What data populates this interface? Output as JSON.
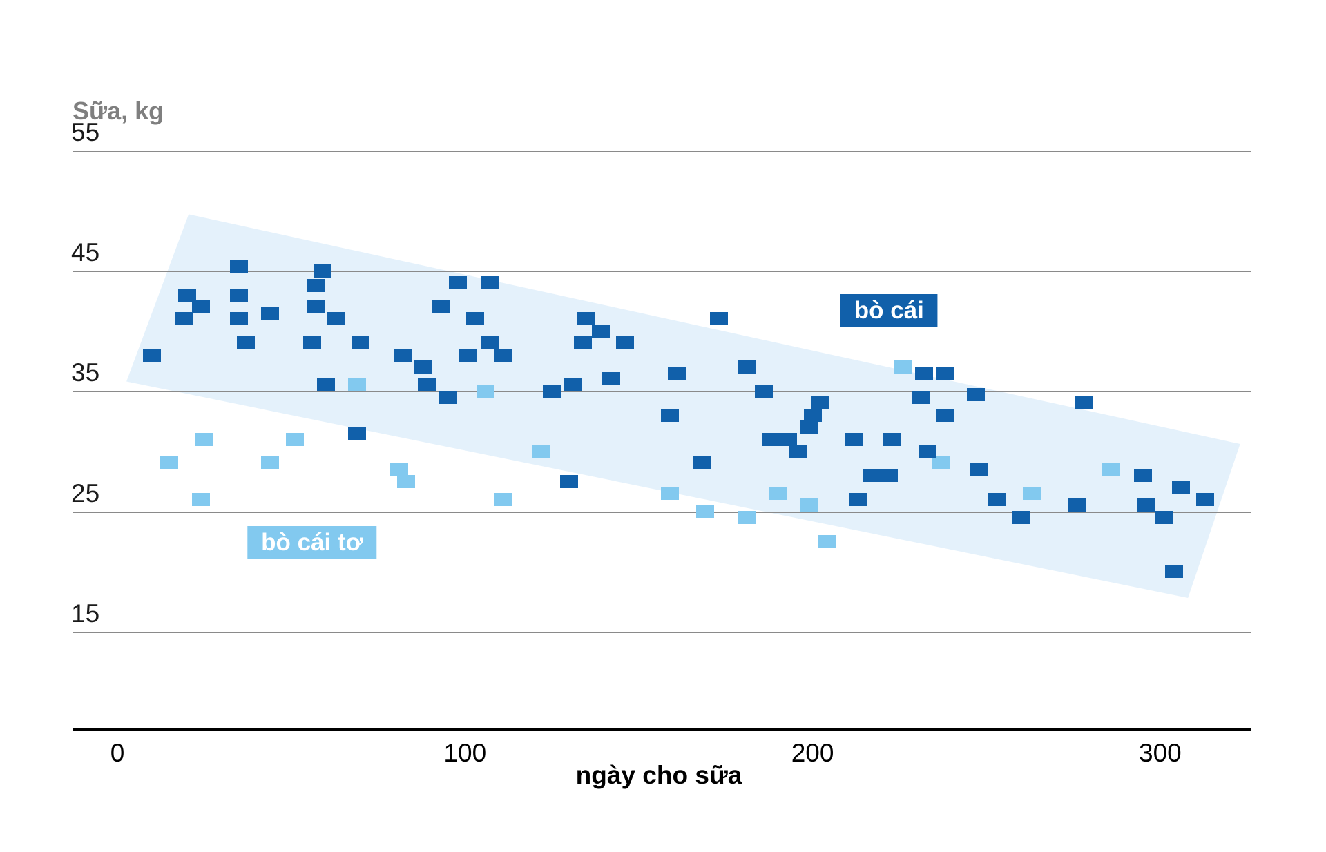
{
  "page": {
    "background": "#ffffff"
  },
  "chart_data": {
    "type": "scatter",
    "title": "",
    "ylabel": "Sữa, kg",
    "xlabel": "ngày cho sữa",
    "y_ticks": [
      55,
      45,
      35,
      25,
      15
    ],
    "x_ticks": [
      0,
      100,
      200,
      300
    ],
    "xlim": [
      -13,
      327
    ],
    "ylim": [
      13,
      58
    ],
    "grid": "horizontal-only",
    "legend_style": "inline-badges",
    "gridline_color": "#8a8a8a",
    "axis_color": "#000000",
    "ylabel_color": "#7f7f7f",
    "trend_band": {
      "color": "#E4F1FB",
      "corners_day_kg": [
        [
          20.5,
          49.7
        ],
        [
          323,
          30.6
        ],
        [
          308,
          17.8
        ],
        [
          2.6,
          35.8
        ]
      ]
    },
    "series": [
      {
        "name": "bò cái tơ",
        "color": "#82C9EF",
        "marker": "square",
        "points": [
          [
            15,
            29
          ],
          [
            24,
            26
          ],
          [
            25,
            31
          ],
          [
            44,
            29
          ],
          [
            51,
            31
          ],
          [
            69,
            35.5
          ],
          [
            81,
            28.5
          ],
          [
            83,
            27.5
          ],
          [
            106,
            35
          ],
          [
            111,
            26
          ],
          [
            122,
            30
          ],
          [
            159,
            26.5
          ],
          [
            169,
            25
          ],
          [
            181,
            24.5
          ],
          [
            190,
            26.5
          ],
          [
            199,
            25.5
          ],
          [
            204,
            22.5
          ],
          [
            226,
            37
          ],
          [
            237,
            29
          ],
          [
            263,
            26.5
          ],
          [
            286,
            28.5
          ]
        ]
      },
      {
        "name": "bò cái",
        "color": "#1160AA",
        "marker": "square",
        "points": [
          [
            10,
            38
          ],
          [
            19,
            41
          ],
          [
            20,
            43
          ],
          [
            24,
            42
          ],
          [
            35,
            45.3
          ],
          [
            35,
            43
          ],
          [
            35,
            41
          ],
          [
            37,
            39
          ],
          [
            44,
            41.5
          ],
          [
            56,
            39
          ],
          [
            57,
            43.8
          ],
          [
            57,
            42
          ],
          [
            59,
            45
          ],
          [
            60,
            35.5
          ],
          [
            63,
            41
          ],
          [
            69,
            31.5
          ],
          [
            70,
            39
          ],
          [
            82,
            38
          ],
          [
            88,
            37
          ],
          [
            89,
            35.5
          ],
          [
            93,
            42
          ],
          [
            95,
            34.5
          ],
          [
            98,
            44
          ],
          [
            101,
            38
          ],
          [
            103,
            41
          ],
          [
            107,
            44
          ],
          [
            107,
            39
          ],
          [
            111,
            38
          ],
          [
            125,
            35
          ],
          [
            130,
            27.5
          ],
          [
            131,
            35.5
          ],
          [
            134,
            39
          ],
          [
            135,
            41
          ],
          [
            139,
            40
          ],
          [
            142,
            36
          ],
          [
            146,
            39
          ],
          [
            159,
            33
          ],
          [
            161,
            36.5
          ],
          [
            168,
            29
          ],
          [
            173,
            41
          ],
          [
            181,
            37
          ],
          [
            186,
            35
          ],
          [
            188,
            31
          ],
          [
            193,
            31
          ],
          [
            196,
            30
          ],
          [
            199,
            32
          ],
          [
            200,
            33
          ],
          [
            202,
            34
          ],
          [
            212,
            31
          ],
          [
            213,
            26
          ],
          [
            217,
            28
          ],
          [
            222,
            28
          ],
          [
            223,
            31
          ],
          [
            231,
            34.5
          ],
          [
            232,
            36.5
          ],
          [
            233,
            30
          ],
          [
            238,
            36.5
          ],
          [
            238,
            33
          ],
          [
            247,
            34.7
          ],
          [
            248,
            28.5
          ],
          [
            253,
            26
          ],
          [
            260,
            24.5
          ],
          [
            276,
            25.5
          ],
          [
            278,
            34
          ],
          [
            295,
            28
          ],
          [
            296,
            25.5
          ],
          [
            301,
            24.5
          ],
          [
            304,
            20
          ],
          [
            306,
            27
          ],
          [
            313,
            26
          ]
        ]
      }
    ],
    "labels": [
      {
        "text": "bò cái",
        "bg": "#1160AA",
        "fg": "#ffffff",
        "anchor_day_kg": [
          222,
          41.7
        ]
      },
      {
        "text": "bò cái tơ",
        "bg": "#82C9EF",
        "fg": "#ffffff",
        "anchor_day_kg": [
          56,
          22.4
        ]
      }
    ]
  }
}
